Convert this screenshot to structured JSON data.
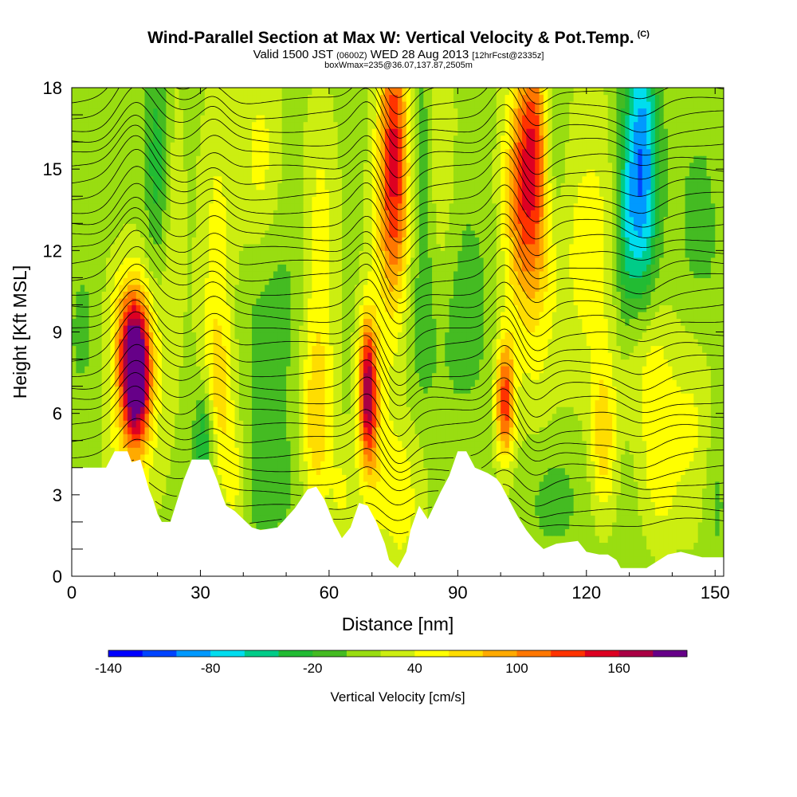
{
  "title": {
    "main": "Wind-Parallel Section at Max W: Vertical Velocity & Pot.Temp.",
    "main_suffix": "(C)",
    "valid_a": "Valid 1500 JST",
    "valid_b": "(0600Z)",
    "valid_c": "WED 28 Aug 2013",
    "valid_d": "[12hrFcst@2335z]",
    "box": "boxWmax=235@36.07,137.87,2505m"
  },
  "chart_data": {
    "type": "heatmap",
    "xlabel": "Distance [nm]",
    "ylabel": "Height [Kft MSL]",
    "xlim": [
      0,
      152
    ],
    "ylim": [
      0,
      18
    ],
    "x_ticks": [
      0,
      30,
      60,
      90,
      120,
      150
    ],
    "y_ticks": [
      0,
      3,
      6,
      9,
      12,
      15,
      18
    ],
    "colorbar": {
      "label": "Vertical Velocity [cm/s]",
      "tick_labels": [
        "-140",
        "-80",
        "-20",
        "40",
        "100",
        "160"
      ],
      "tick_values": [
        -140,
        -80,
        -20,
        40,
        100,
        160
      ],
      "bin_edges": [
        -140,
        -120,
        -100,
        -80,
        -60,
        -40,
        -20,
        0,
        20,
        40,
        60,
        80,
        100,
        120,
        140,
        160,
        180,
        200
      ],
      "colors": [
        "#0000ff",
        "#0044ff",
        "#0099ff",
        "#00ddee",
        "#00cc88",
        "#22bb33",
        "#44bb22",
        "#99dd11",
        "#ccee11",
        "#ffff00",
        "#ffdd00",
        "#ffaa00",
        "#ff7700",
        "#ff3300",
        "#dd0022",
        "#aa0044",
        "#660088"
      ]
    },
    "background_w": 10,
    "terrain": [
      [
        0,
        4
      ],
      [
        8,
        4
      ],
      [
        10,
        4.6
      ],
      [
        13,
        4.6
      ],
      [
        14,
        4.2
      ],
      [
        16,
        4.3
      ],
      [
        18,
        3.2
      ],
      [
        19,
        2.8
      ],
      [
        20,
        2.3
      ],
      [
        21,
        2
      ],
      [
        23,
        2
      ],
      [
        24,
        2.5
      ],
      [
        26,
        3.5
      ],
      [
        28,
        4.3
      ],
      [
        32,
        4.3
      ],
      [
        34,
        3.5
      ],
      [
        35,
        3
      ],
      [
        36,
        2.6
      ],
      [
        38,
        2.4
      ],
      [
        40,
        2.1
      ],
      [
        42,
        1.8
      ],
      [
        44,
        1.7
      ],
      [
        48,
        1.8
      ],
      [
        52,
        2.5
      ],
      [
        55,
        3.2
      ],
      [
        57,
        3.3
      ],
      [
        59,
        2.8
      ],
      [
        61,
        2
      ],
      [
        63,
        1.4
      ],
      [
        65,
        1.8
      ],
      [
        67,
        2.7
      ],
      [
        69,
        2.6
      ],
      [
        71,
        2
      ],
      [
        73,
        1.2
      ],
      [
        74,
        0.6
      ],
      [
        76,
        0.3
      ],
      [
        78,
        0.9
      ],
      [
        79,
        1.7
      ],
      [
        81,
        2.6
      ],
      [
        83,
        2.1
      ],
      [
        86,
        3.1
      ],
      [
        88,
        3.7
      ],
      [
        90,
        4.6
      ],
      [
        92,
        4.6
      ],
      [
        94,
        4
      ],
      [
        97,
        3.8
      ],
      [
        99,
        3.6
      ],
      [
        100,
        3.4
      ],
      [
        102,
        2.8
      ],
      [
        104,
        2.2
      ],
      [
        106,
        1.7
      ],
      [
        108,
        1.3
      ],
      [
        110,
        1
      ],
      [
        113,
        1.2
      ],
      [
        118,
        1.3
      ],
      [
        120,
        0.9
      ],
      [
        123,
        0.8
      ],
      [
        125,
        0.8
      ],
      [
        127,
        0.6
      ],
      [
        128,
        0.3
      ],
      [
        134,
        0.3
      ],
      [
        139,
        0.8
      ],
      [
        142,
        0.9
      ],
      [
        147,
        0.7
      ],
      [
        152,
        0.7
      ]
    ],
    "cells": [
      {
        "x": 15,
        "y": 7.5,
        "sx": 2.2,
        "sy": 1.6,
        "w": 190
      },
      {
        "x": 14,
        "y": 6.5,
        "sx": 4,
        "sy": 3.2,
        "w": 60
      },
      {
        "x": 13,
        "y": 9.5,
        "sx": 3,
        "sy": 1.5,
        "w": 40
      },
      {
        "x": 22,
        "y": 13,
        "sx": 3,
        "sy": 5,
        "w": 30
      },
      {
        "x": 31,
        "y": 5,
        "sx": 1.6,
        "sy": 1.5,
        "w": -70
      },
      {
        "x": 20,
        "y": 15,
        "sx": 2,
        "sy": 3,
        "w": -60
      },
      {
        "x": 34,
        "y": 11,
        "sx": 3,
        "sy": 5,
        "w": 40
      },
      {
        "x": 34,
        "y": 6.5,
        "sx": 2.5,
        "sy": 2,
        "w": 40
      },
      {
        "x": 44,
        "y": 15,
        "sx": 3.5,
        "sy": 3,
        "w": 40
      },
      {
        "x": 46,
        "y": 10,
        "sx": 5,
        "sy": 3,
        "w": -25
      },
      {
        "x": 57,
        "y": 5.5,
        "sx": 2.5,
        "sy": 2.5,
        "w": 60
      },
      {
        "x": 58,
        "y": 12,
        "sx": 3,
        "sy": 4,
        "w": 40
      },
      {
        "x": 69,
        "y": 7,
        "sx": 1.5,
        "sy": 1.8,
        "w": 140
      },
      {
        "x": 70,
        "y": 5,
        "sx": 2.5,
        "sy": 2.5,
        "w": 40
      },
      {
        "x": 75,
        "y": 16,
        "sx": 2.5,
        "sy": 3.5,
        "w": 120
      },
      {
        "x": 75,
        "y": 12,
        "sx": 4,
        "sy": 3,
        "w": 40
      },
      {
        "x": 77,
        "y": 3,
        "sx": 4,
        "sy": 2.5,
        "w": 40
      },
      {
        "x": 81,
        "y": 9,
        "sx": 3,
        "sy": 3,
        "w": -20
      },
      {
        "x": 85,
        "y": 15,
        "sx": 3,
        "sy": 4,
        "w": 40
      },
      {
        "x": 82,
        "y": 15,
        "sx": 2,
        "sy": 3,
        "w": -50
      },
      {
        "x": 101,
        "y": 6.5,
        "sx": 1.6,
        "sy": 1.6,
        "w": 120
      },
      {
        "x": 108,
        "y": 16,
        "sx": 3,
        "sy": 3,
        "w": 100
      },
      {
        "x": 108,
        "y": 11,
        "sx": 4,
        "sy": 4,
        "w": 40
      },
      {
        "x": 104,
        "y": 14,
        "sx": 3,
        "sy": 3,
        "w": 60
      },
      {
        "x": 112,
        "y": 16,
        "sx": 2,
        "sy": 2.5,
        "w": -50
      },
      {
        "x": 124,
        "y": 5,
        "sx": 2,
        "sy": 2,
        "w": 60
      },
      {
        "x": 121,
        "y": 12,
        "sx": 5,
        "sy": 4,
        "w": 40
      },
      {
        "x": 133,
        "y": 15,
        "sx": 2.5,
        "sy": 3.5,
        "w": -110
      },
      {
        "x": 129,
        "y": 13,
        "sx": 2,
        "sy": 3,
        "w": -50
      },
      {
        "x": 134,
        "y": 8,
        "sx": 4,
        "sy": 2,
        "w": 40
      },
      {
        "x": 137,
        "y": 4,
        "sx": 3,
        "sy": 2,
        "w": 40
      },
      {
        "x": 146,
        "y": 11,
        "sx": 4,
        "sy": 4,
        "w": -20
      },
      {
        "x": 145,
        "y": 6,
        "sx": 4,
        "sy": 3,
        "w": 40
      },
      {
        "x": 90,
        "y": 10,
        "sx": 6,
        "sy": 3,
        "w": -20
      },
      {
        "x": 45,
        "y": 3.5,
        "sx": 6,
        "sy": 1.5,
        "w": -20
      },
      {
        "x": 112,
        "y": 3,
        "sx": 5,
        "sy": 1.5,
        "w": -20
      },
      {
        "x": 3,
        "y": 9,
        "sx": 3,
        "sy": 2,
        "w": -15
      },
      {
        "x": 38,
        "y": 3.5,
        "sx": 2,
        "sy": 1.5,
        "w": 40
      },
      {
        "x": 63,
        "y": 3,
        "sx": 2,
        "sy": 1.5,
        "w": 30
      },
      {
        "x": 150,
        "y": 3,
        "sx": 2,
        "sy": 2,
        "w": -20
      }
    ],
    "isentropes": {
      "count": 34,
      "base": 2.0,
      "spacing": 0.5,
      "waves": [
        {
          "x": 15,
          "s": 4,
          "a": 1.6
        },
        {
          "x": 33,
          "s": 3,
          "a": 0.7
        },
        {
          "x": 69,
          "s": 3,
          "a": 0.9
        },
        {
          "x": 76,
          "s": 3,
          "a": -0.9
        },
        {
          "x": 101,
          "s": 3,
          "a": 1.0
        },
        {
          "x": 108,
          "s": 3,
          "a": -0.6
        },
        {
          "x": 133,
          "s": 4,
          "a": -0.5
        }
      ],
      "label_xs": [
        2,
        15,
        23,
        33,
        49,
        64,
        71,
        78,
        104,
        110,
        118,
        130
      ]
    }
  }
}
